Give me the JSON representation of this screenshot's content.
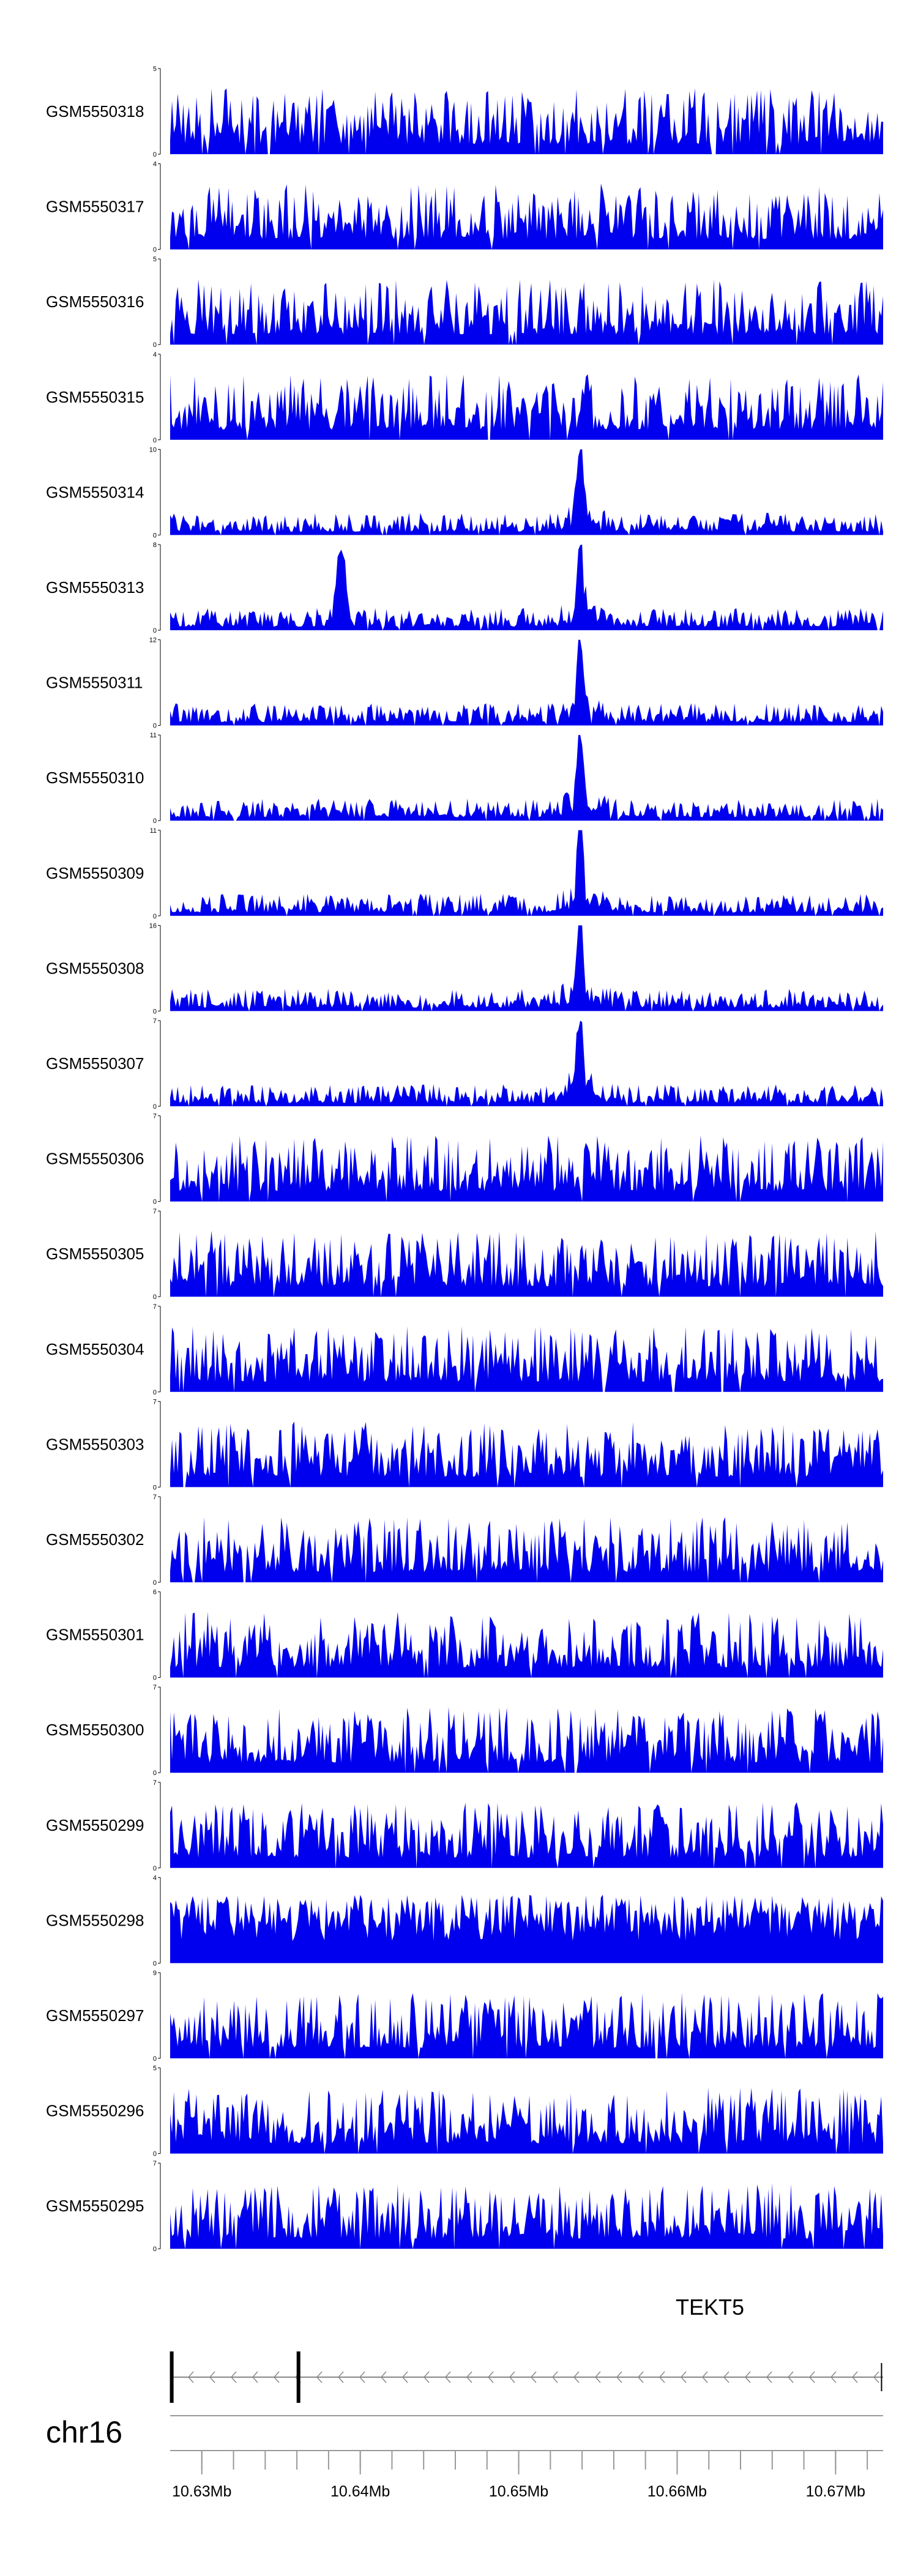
{
  "chart_data": {
    "type": "area",
    "x_range": [
      10626600,
      10671600
    ],
    "series_color": "#0000ee",
    "tracks": [
      {
        "name": "GSM5550318",
        "ymax": "5",
        "ymin": "0",
        "seed": 318,
        "profile": "flat"
      },
      {
        "name": "GSM5550317",
        "ymax": "4",
        "ymin": "0",
        "seed": 317,
        "profile": "flat"
      },
      {
        "name": "GSM5550316",
        "ymax": "5",
        "ymin": "0",
        "seed": 316,
        "profile": "flat"
      },
      {
        "name": "GSM5550315",
        "ymax": "4",
        "ymin": "0",
        "seed": 315,
        "profile": "flat"
      },
      {
        "name": "GSM5550314",
        "ymax": "10",
        "ymin": "0",
        "seed": 314,
        "profile": "peak"
      },
      {
        "name": "GSM5550313",
        "ymax": "8",
        "ymin": "0",
        "seed": 313,
        "profile": "peak2"
      },
      {
        "name": "GSM5550311",
        "ymax": "12",
        "ymin": "0",
        "seed": 311,
        "profile": "peak"
      },
      {
        "name": "GSM5550310",
        "ymax": "11",
        "ymin": "0",
        "seed": 310,
        "profile": "peak"
      },
      {
        "name": "GSM5550309",
        "ymax": "11",
        "ymin": "0",
        "seed": 309,
        "profile": "peak"
      },
      {
        "name": "GSM5550308",
        "ymax": "16",
        "ymin": "0",
        "seed": 308,
        "profile": "peak"
      },
      {
        "name": "GSM5550307",
        "ymax": "7",
        "ymin": "0",
        "seed": 307,
        "profile": "peak"
      },
      {
        "name": "GSM5550306",
        "ymax": "7",
        "ymin": "0",
        "seed": 306,
        "profile": "flat"
      },
      {
        "name": "GSM5550305",
        "ymax": "7",
        "ymin": "0",
        "seed": 305,
        "profile": "flat"
      },
      {
        "name": "GSM5550304",
        "ymax": "7",
        "ymin": "0",
        "seed": 304,
        "profile": "flat"
      },
      {
        "name": "GSM5550303",
        "ymax": "7",
        "ymin": "0",
        "seed": 303,
        "profile": "flat"
      },
      {
        "name": "GSM5550302",
        "ymax": "7",
        "ymin": "0",
        "seed": 302,
        "profile": "flat"
      },
      {
        "name": "GSM5550301",
        "ymax": "6",
        "ymin": "0",
        "seed": 301,
        "profile": "flat"
      },
      {
        "name": "GSM5550300",
        "ymax": "7",
        "ymin": "0",
        "seed": 300,
        "profile": "flat"
      },
      {
        "name": "GSM5550299",
        "ymax": "7",
        "ymin": "0",
        "seed": 299,
        "profile": "flat"
      },
      {
        "name": "GSM5550298",
        "ymax": "4",
        "ymin": "0",
        "seed": 298,
        "profile": "dense"
      },
      {
        "name": "GSM5550297",
        "ymax": "9",
        "ymin": "0",
        "seed": 297,
        "profile": "flat"
      },
      {
        "name": "GSM5550296",
        "ymax": "5",
        "ymin": "0",
        "seed": 296,
        "profile": "flat"
      },
      {
        "name": "GSM5550295",
        "ymax": "7",
        "ymin": "0",
        "seed": 295,
        "profile": "flat"
      }
    ],
    "gene": {
      "name": "TEKT5",
      "strand": "-",
      "start": 10626600,
      "end": 10671600,
      "exons": [
        10626700,
        10634700,
        10671500
      ]
    },
    "chromosome": "chr16",
    "xticks": [
      {
        "pos": 10628600,
        "label": "10.63Mb"
      },
      {
        "pos": 10638600,
        "label": "10.64Mb"
      },
      {
        "pos": 10648600,
        "label": "10.65Mb"
      },
      {
        "pos": 10658600,
        "label": "10.66Mb"
      },
      {
        "pos": 10668600,
        "label": "10.67Mb"
      }
    ],
    "minor_tick_step": 2000
  }
}
